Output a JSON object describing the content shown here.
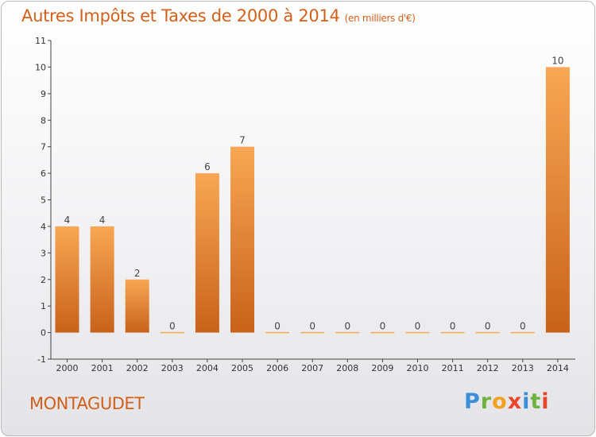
{
  "header": {
    "title": "Autres Impôts et Taxes de 2000 à 2014",
    "unit": "(en milliers d'€)"
  },
  "footer": {
    "commune": "MONTAGUDET",
    "logo": [
      "P",
      "r",
      "o",
      "x",
      "i",
      "t",
      "i"
    ]
  },
  "colors": {
    "title": "#d2601a",
    "bar_light": "#f8a754",
    "bar_dark": "#c8621b",
    "logo": [
      "#3b8fd8",
      "#6cb43f",
      "#f2a21f",
      "#e8452c",
      "#3b8fd8",
      "#6cb43f",
      "#e8452c"
    ]
  },
  "chart_data": {
    "type": "bar",
    "categories": [
      "2000",
      "2001",
      "2002",
      "2003",
      "2004",
      "2005",
      "2006",
      "2007",
      "2008",
      "2009",
      "2010",
      "2011",
      "2012",
      "2013",
      "2014"
    ],
    "values": [
      4,
      4,
      2,
      0,
      6,
      7,
      0,
      0,
      0,
      0,
      0,
      0,
      0,
      0,
      10
    ],
    "data_labels": [
      "4",
      "4",
      "2",
      "0",
      "6",
      "7",
      "0",
      "0",
      "0",
      "0",
      "0",
      "0",
      "0",
      "0",
      "10"
    ],
    "y_ticks": [
      {
        "value": -1,
        "label": "-1"
      },
      {
        "value": 0,
        "label": "0"
      },
      {
        "value": 1,
        "label": "1"
      },
      {
        "value": 2,
        "label": "2"
      },
      {
        "value": 3,
        "label": "3"
      },
      {
        "value": 4,
        "label": "4"
      },
      {
        "value": 5,
        "label": "5"
      },
      {
        "value": 6,
        "label": "6"
      },
      {
        "value": 7,
        "label": "7"
      },
      {
        "value": 8,
        "label": "8"
      },
      {
        "value": 9,
        "label": "9"
      },
      {
        "value": 10,
        "label": "10"
      },
      {
        "value": 11,
        "label": "11"
      }
    ],
    "ylim": [
      -1,
      11
    ],
    "grid": false,
    "legend": "none"
  }
}
